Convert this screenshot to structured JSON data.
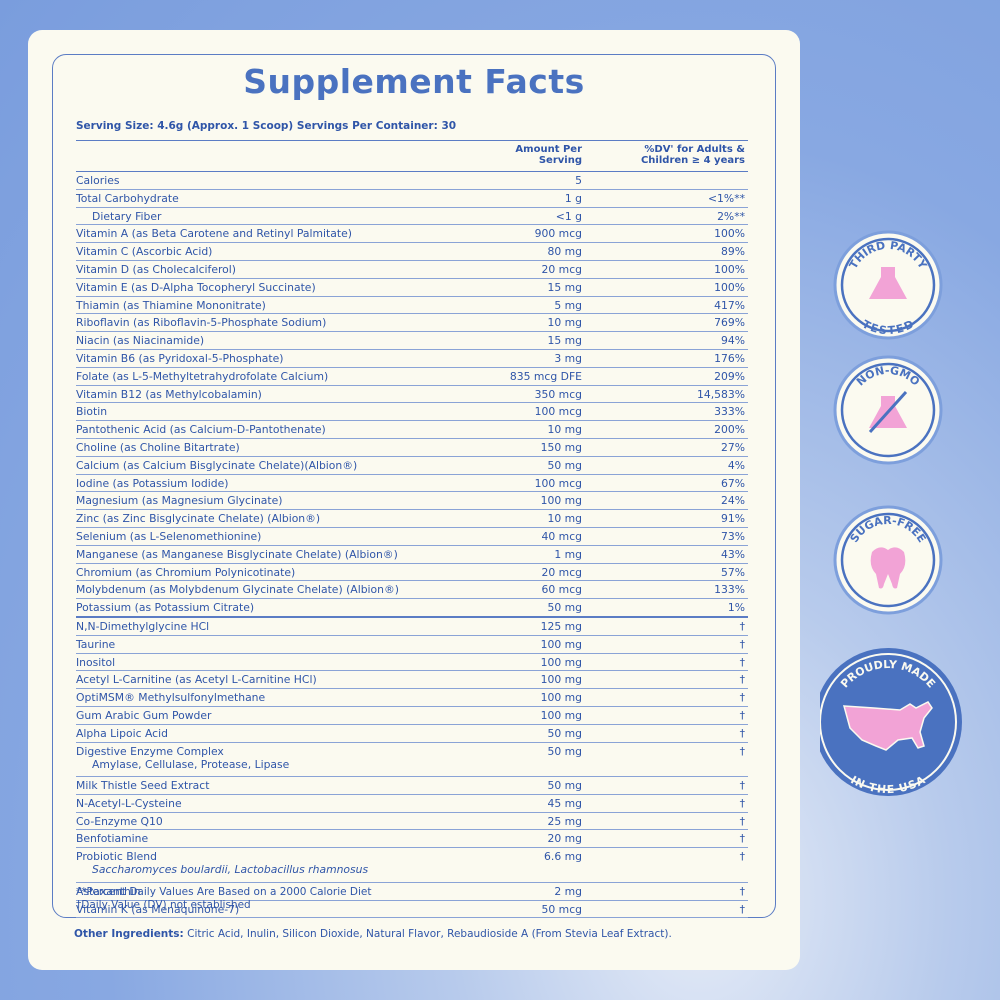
{
  "header": {
    "title": "Supplement Facts",
    "serving": "Serving Size: 4.6g (Approx. 1 Scoop) Servings Per Container: 30"
  },
  "table": {
    "columns": [
      "Amount Per Serving",
      "%DV' for Adults & Children ≥ 4 years"
    ],
    "nutrients": [
      {
        "name": "Calories",
        "amount": "5",
        "dv": ""
      },
      {
        "name": "Total Carbohydrate",
        "amount": "1 g",
        "dv": "<1%**"
      },
      {
        "name": "Dietary Fiber",
        "amount": "<1 g",
        "dv": "2%**"
      },
      {
        "name": "Vitamin A (as Beta Carotene and Retinyl Palmitate)",
        "amount": "900 mcg",
        "dv": "100%"
      },
      {
        "name": "Vitamin C (Ascorbic Acid)",
        "amount": "80 mg",
        "dv": "89%"
      },
      {
        "name": "Vitamin D (as Cholecalciferol)",
        "amount": "20 mcg",
        "dv": "100%"
      },
      {
        "name": "Vitamin E (as D-Alpha Tocopheryl Succinate)",
        "amount": "15 mg",
        "dv": "100%"
      },
      {
        "name": "Thiamin (as Thiamine Mononitrate)",
        "amount": "5 mg",
        "dv": "417%"
      },
      {
        "name": "Riboflavin (as Riboflavin-5-Phosphate Sodium)",
        "amount": "10 mg",
        "dv": "769%"
      },
      {
        "name": "Niacin (as Niacinamide)",
        "amount": "15 mg",
        "dv": "94%"
      },
      {
        "name": "Vitamin B6 (as Pyridoxal-5-Phosphate)",
        "amount": "3 mg",
        "dv": "176%"
      },
      {
        "name": "Folate (as L-5-Methyltetrahydrofolate Calcium)",
        "amount": "835 mcg DFE",
        "dv": "209%"
      },
      {
        "name": "Vitamin B12 (as Methylcobalamin)",
        "amount": "350 mcg",
        "dv": "14,583%"
      },
      {
        "name": "Biotin",
        "amount": "100 mcg",
        "dv": "333%"
      },
      {
        "name": "Pantothenic Acid (as Calcium-D-Pantothenate)",
        "amount": "10 mg",
        "dv": "200%"
      },
      {
        "name": "Choline (as Choline Bitartrate)",
        "amount": "150 mg",
        "dv": "27%"
      },
      {
        "name": "Calcium (as Calcium Bisglycinate Chelate)(Albion®)",
        "amount": "50 mg",
        "dv": "4%"
      },
      {
        "name": "Iodine (as Potassium Iodide)",
        "amount": "100 mcg",
        "dv": "67%"
      },
      {
        "name": "Magnesium (as Magnesium Glycinate)",
        "amount": "100 mg",
        "dv": "24%"
      },
      {
        "name": "Zinc (as Zinc Bisglycinate Chelate) (Albion®)",
        "amount": "10 mg",
        "dv": "91%"
      },
      {
        "name": "Selenium (as L-Selenomethionine)",
        "amount": "40 mcg",
        "dv": "73%"
      },
      {
        "name": "Manganese (as Manganese Bisglycinate Chelate) (Albion®)",
        "amount": "1 mg",
        "dv": "43%"
      },
      {
        "name": "Chromium (as Chromium Polynicotinate)",
        "amount": "20 mcg",
        "dv": "57%"
      },
      {
        "name": "Molybdenum (as Molybdenum Glycinate Chelate) (Albion®)",
        "amount": "60 mcg",
        "dv": "133%"
      },
      {
        "name": "Potassium (as Potassium Citrate)",
        "amount": "50 mg",
        "dv": "1%"
      }
    ],
    "other": [
      {
        "name": "N,N-Dimethylglycine HCl",
        "amount": "125 mg",
        "dv": "†"
      },
      {
        "name": "Taurine",
        "amount": "100 mg",
        "dv": "†"
      },
      {
        "name": "Inositol",
        "amount": "100 mg",
        "dv": "†"
      },
      {
        "name": "Acetyl L-Carnitine (as Acetyl L-Carnitine HCl)",
        "amount": "100 mg",
        "dv": "†"
      },
      {
        "name": "OptiMSM® Methylsulfonylmethane",
        "amount": "100 mg",
        "dv": "†"
      },
      {
        "name": "Gum Arabic Gum Powder",
        "amount": "100 mg",
        "dv": "†"
      },
      {
        "name": "Alpha Lipoic Acid",
        "amount": "50 mg",
        "dv": "†"
      },
      {
        "name": "Digestive Enzyme Complex",
        "components": "Amylase, Cellulase, Protease, Lipase",
        "amount": "50 mg",
        "dv": "†"
      },
      {
        "name": "Milk Thistle Seed Extract",
        "amount": "50 mg",
        "dv": "†"
      },
      {
        "name": "N-Acetyl-L-Cysteine",
        "amount": "45 mg",
        "dv": "†"
      },
      {
        "name": "Co-Enzyme Q10",
        "amount": "25 mg",
        "dv": "†"
      },
      {
        "name": "Benfotiamine",
        "amount": "20 mg",
        "dv": "†"
      },
      {
        "name": "Probiotic Blend",
        "strains": "Saccharomyces boulardii, Lactobacillus rhamnosus",
        "amount": "6.6 mg",
        "dv": "†"
      },
      {
        "name": "Astaxanthin",
        "amount": "2 mg",
        "dv": "†"
      },
      {
        "name": "Vitamin K (as Menaquinone-7)",
        "amount": "50 mcg",
        "dv": "†"
      }
    ],
    "footnotes": [
      "**Percent Daily Values Are Based on a 2000 Calorie Diet",
      "†Daily Value (DV) not established"
    ]
  },
  "other_ingredients": {
    "label": "Other Ingredients:",
    "text": "Citric Acid, Inulin, Silicon Dioxide, Natural Flavor, Rebaudioside A (From Stevia Leaf Extract)."
  },
  "badges": [
    {
      "top": "THIRD PARTY",
      "bottom": "TESTED"
    },
    {
      "top": "NON-GMO"
    },
    {
      "top": "SUGAR-FREE"
    },
    {
      "top": "PROUDLY MADE",
      "bottom": "IN THE USA"
    }
  ]
}
